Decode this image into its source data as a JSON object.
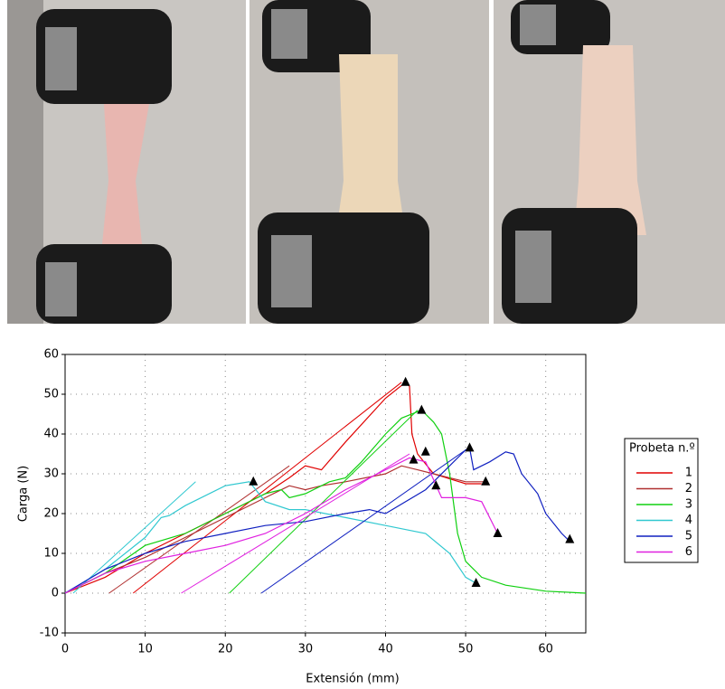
{
  "chart_data": {
    "type": "line",
    "xlabel": "Extensión (mm)",
    "ylabel": "Carga (N)",
    "legend_title": "Probeta n.º",
    "xlim": [
      0,
      65
    ],
    "xticks": [
      0,
      10,
      20,
      30,
      40,
      50,
      60
    ],
    "ylim": [
      -10,
      60
    ],
    "yticks": [
      -10,
      0,
      10,
      20,
      30,
      40,
      50,
      60
    ],
    "grid": true,
    "legend": "right",
    "series": [
      {
        "name": "1",
        "color": "#e00000",
        "x": [
          0,
          5,
          10,
          15,
          20,
          25,
          28,
          30,
          32,
          35,
          40,
          42.5,
          43,
          43.3,
          44,
          46,
          50,
          52
        ],
        "values": [
          0,
          4,
          10,
          15,
          20,
          25,
          29,
          32,
          31,
          38,
          49,
          53,
          52,
          40,
          35,
          30,
          27.5,
          27.5
        ],
        "tangent": {
          "x": [
            8.5,
            42
          ],
          "values": [
            0,
            53
          ]
        }
      },
      {
        "name": "2",
        "color": "#b03030",
        "x": [
          0,
          5,
          10,
          15,
          20,
          25,
          27,
          28,
          30,
          32,
          35,
          40,
          42,
          44,
          46,
          48,
          50,
          52.5
        ],
        "values": [
          0,
          5,
          9,
          14,
          19,
          24,
          26,
          27,
          26,
          27,
          28,
          30,
          32,
          31,
          30,
          29,
          28,
          28
        ],
        "tangent": {
          "x": [
            5.5,
            28
          ],
          "values": [
            0,
            32
          ]
        }
      },
      {
        "name": "3",
        "color": "#10d010",
        "x": [
          0,
          5,
          10,
          15,
          20,
          25,
          27,
          28,
          30,
          33,
          35,
          37,
          40,
          42,
          44.5,
          45,
          46,
          47,
          48,
          49,
          50,
          52,
          55,
          60,
          65
        ],
        "values": [
          0,
          5,
          12,
          15,
          20,
          25,
          26,
          24,
          25,
          28,
          29,
          33,
          40,
          44,
          46,
          45,
          43,
          40,
          30,
          15,
          8,
          4,
          2,
          0.5,
          0
        ],
        "tangent": {
          "x": [
            20.5,
            44
          ],
          "values": [
            0,
            46
          ]
        }
      },
      {
        "name": "4",
        "color": "#30c8d0",
        "x": [
          0,
          5,
          10,
          12,
          13,
          15,
          20,
          23,
          25,
          28,
          30,
          35,
          40,
          45,
          48,
          50,
          51.3
        ],
        "values": [
          0,
          6,
          14,
          19,
          19.5,
          22,
          27,
          28,
          23,
          21,
          21,
          19,
          17,
          15,
          10,
          4,
          2.5
        ],
        "tangent": {
          "x": [
            1,
            16.3
          ],
          "values": [
            0,
            28
          ]
        }
      },
      {
        "name": "5",
        "color": "#1020c0",
        "x": [
          0,
          5,
          10,
          15,
          20,
          25,
          30,
          35,
          38,
          40,
          45,
          50,
          50.5,
          51,
          53,
          55,
          56,
          57,
          59,
          60,
          62,
          63
        ],
        "values": [
          0,
          6,
          10,
          13,
          15,
          17,
          18,
          20,
          21,
          20,
          26,
          36,
          36.5,
          31,
          33,
          35.5,
          35,
          30,
          25,
          20,
          15,
          13
        ],
        "tangent": {
          "x": [
            24.5,
            50
          ],
          "values": [
            0,
            36
          ]
        }
      },
      {
        "name": "6",
        "color": "#e020e0",
        "x": [
          0,
          5,
          10,
          15,
          20,
          25,
          30,
          35,
          40,
          43,
          45,
          47,
          50,
          52,
          54
        ],
        "values": [
          0,
          5,
          8,
          10,
          12,
          15,
          20,
          26,
          31,
          34,
          33,
          24,
          24,
          23,
          15
        ],
        "tangent": {
          "x": [
            14.5,
            43
          ],
          "values": [
            0,
            35
          ]
        }
      }
    ],
    "markers": {
      "x": [
        42.5,
        44.5,
        23.5,
        51.3,
        50.5,
        63,
        43.5,
        45,
        46.3,
        52.5,
        54
      ],
      "y": [
        53,
        46,
        28,
        2.5,
        36.5,
        13.5,
        33.5,
        35.5,
        27,
        28,
        15
      ]
    }
  }
}
